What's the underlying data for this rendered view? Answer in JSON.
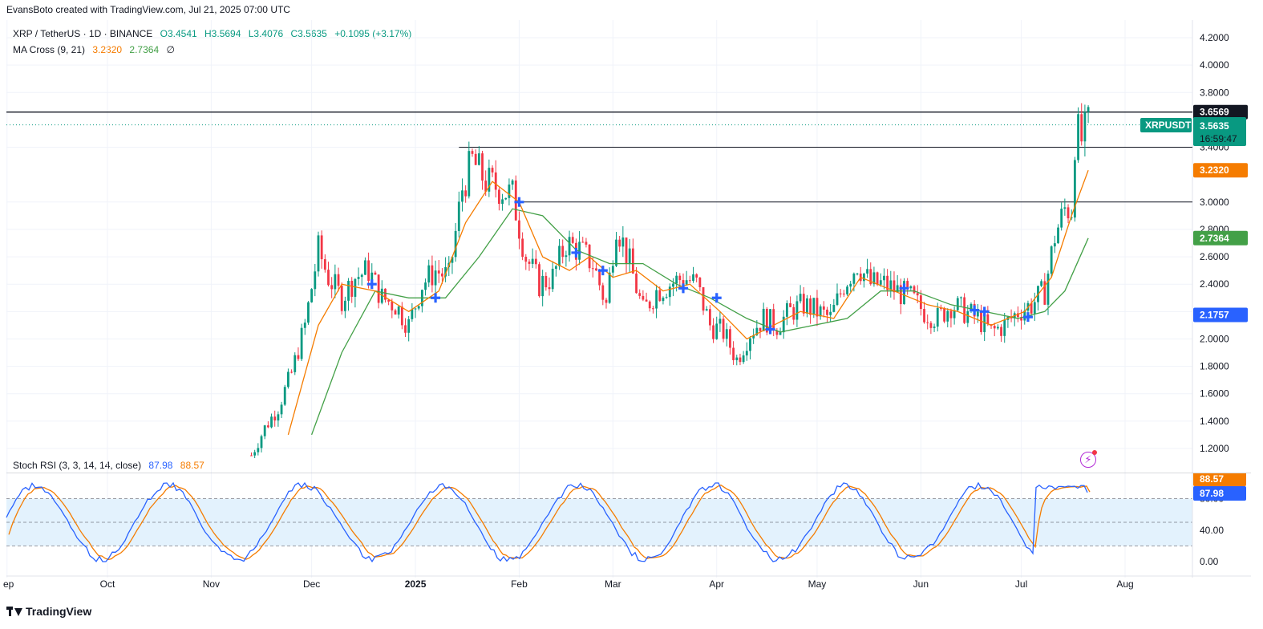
{
  "header": {
    "author_line": "EvansBoto created with TradingView.com, Jul 21, 2025 07:00 UTC"
  },
  "legend": {
    "symbol": "XRP / TetherUS · 1D · BINANCE",
    "open": "O3.4541",
    "high": "H3.5694",
    "low": "L3.4076",
    "close": "C3.5635",
    "change": "+0.1095 (+3.17%)",
    "ma_label": "MA Cross (9, 21)",
    "ma_fast": "3.2320",
    "ma_slow": "2.7364",
    "ma_suffix": "∅",
    "rsi_label": "Stoch RSI (3, 3, 14, 14, close)",
    "rsi_k": "87.98",
    "rsi_d": "88.57"
  },
  "price_tags": {
    "resistance": "3.6569",
    "symbol_tag": "XRPUSDT",
    "last_price": "3.5635",
    "countdown": "16:59:47",
    "ma_fast": "3.2320",
    "ma_slow": "2.7364",
    "low_tag": "2.1757",
    "rsi_d": "88.57",
    "rsi_k": "87.98"
  },
  "footer": {
    "brand": "TradingView"
  },
  "colors": {
    "up": "#089981",
    "down": "#f23645",
    "ma_fast": "#f57c00",
    "ma_slow": "#43a047",
    "rsi_k": "#2962ff",
    "rsi_d": "#f57c00",
    "rsi_band": "#e3f2fd"
  },
  "chart_data": {
    "type": "candlestick",
    "price_axis": {
      "min": 1.1,
      "max": 4.25,
      "ticks": [
        "1.2000",
        "1.4000",
        "1.6000",
        "1.8000",
        "2.0000",
        "2.2000",
        "2.4000",
        "2.6000",
        "2.8000",
        "3.0000",
        "3.4000",
        "3.8000",
        "4.0000",
        "4.2000"
      ]
    },
    "time_axis": {
      "labels": [
        "ep",
        "Oct",
        "Nov",
        "Dec",
        "2025",
        "Feb",
        "Mar",
        "Apr",
        "May",
        "Jun",
        "Jul",
        "Aug"
      ]
    },
    "horizontal_lines": [
      3.6569,
      3.4,
      3.0
    ],
    "weekly_closes": [
      {
        "d": "2024-11-13",
        "c": 1.15
      },
      {
        "d": "2024-11-17",
        "c": 1.35
      },
      {
        "d": "2024-11-21",
        "c": 1.5
      },
      {
        "d": "2024-11-25",
        "c": 1.75
      },
      {
        "d": "2024-11-29",
        "c": 2.1
      },
      {
        "d": "2024-12-03",
        "c": 2.65
      },
      {
        "d": "2024-12-06",
        "c": 2.45
      },
      {
        "d": "2024-12-10",
        "c": 2.3
      },
      {
        "d": "2024-12-14",
        "c": 2.45
      },
      {
        "d": "2024-12-18",
        "c": 2.5
      },
      {
        "d": "2024-12-22",
        "c": 2.3
      },
      {
        "d": "2024-12-26",
        "c": 2.25
      },
      {
        "d": "2024-12-30",
        "c": 2.1
      },
      {
        "d": "2025-01-03",
        "c": 2.4
      },
      {
        "d": "2025-01-07",
        "c": 2.5
      },
      {
        "d": "2025-01-11",
        "c": 2.45
      },
      {
        "d": "2025-01-15",
        "c": 3.1
      },
      {
        "d": "2025-01-18",
        "c": 3.3
      },
      {
        "d": "2025-01-22",
        "c": 3.15
      },
      {
        "d": "2025-01-26",
        "c": 3.1
      },
      {
        "d": "2025-01-30",
        "c": 3.05
      },
      {
        "d": "2025-02-03",
        "c": 2.6
      },
      {
        "d": "2025-02-07",
        "c": 2.4
      },
      {
        "d": "2025-02-11",
        "c": 2.45
      },
      {
        "d": "2025-02-15",
        "c": 2.7
      },
      {
        "d": "2025-02-19",
        "c": 2.65
      },
      {
        "d": "2025-02-23",
        "c": 2.55
      },
      {
        "d": "2025-02-27",
        "c": 2.25
      },
      {
        "d": "2025-03-02",
        "c": 2.85
      },
      {
        "d": "2025-03-06",
        "c": 2.55
      },
      {
        "d": "2025-03-10",
        "c": 2.2
      },
      {
        "d": "2025-03-14",
        "c": 2.35
      },
      {
        "d": "2025-03-18",
        "c": 2.4
      },
      {
        "d": "2025-03-22",
        "c": 2.45
      },
      {
        "d": "2025-03-26",
        "c": 2.4
      },
      {
        "d": "2025-03-30",
        "c": 2.1
      },
      {
        "d": "2025-04-03",
        "c": 2.05
      },
      {
        "d": "2025-04-07",
        "c": 1.85
      },
      {
        "d": "2025-04-11",
        "c": 2.05
      },
      {
        "d": "2025-04-15",
        "c": 2.15
      },
      {
        "d": "2025-04-19",
        "c": 2.1
      },
      {
        "d": "2025-04-23",
        "c": 2.2
      },
      {
        "d": "2025-04-27",
        "c": 2.25
      },
      {
        "d": "2025-05-01",
        "c": 2.2
      },
      {
        "d": "2025-05-05",
        "c": 2.15
      },
      {
        "d": "2025-05-09",
        "c": 2.4
      },
      {
        "d": "2025-05-13",
        "c": 2.55
      },
      {
        "d": "2025-05-17",
        "c": 2.4
      },
      {
        "d": "2025-05-21",
        "c": 2.4
      },
      {
        "d": "2025-05-25",
        "c": 2.35
      },
      {
        "d": "2025-05-29",
        "c": 2.3
      },
      {
        "d": "2025-06-02",
        "c": 2.2
      },
      {
        "d": "2025-06-06",
        "c": 2.15
      },
      {
        "d": "2025-06-10",
        "c": 2.25
      },
      {
        "d": "2025-06-14",
        "c": 2.2
      },
      {
        "d": "2025-06-18",
        "c": 2.15
      },
      {
        "d": "2025-06-22",
        "c": 2.05
      },
      {
        "d": "2025-06-26",
        "c": 2.1
      },
      {
        "d": "2025-06-30",
        "c": 2.2
      },
      {
        "d": "2025-07-04",
        "c": 2.25
      },
      {
        "d": "2025-07-08",
        "c": 2.35
      },
      {
        "d": "2025-07-11",
        "c": 2.75
      },
      {
        "d": "2025-07-14",
        "c": 2.95
      },
      {
        "d": "2025-07-16",
        "c": 2.95
      },
      {
        "d": "2025-07-17",
        "c": 3.45
      },
      {
        "d": "2025-07-18",
        "c": 3.5
      },
      {
        "d": "2025-07-19",
        "c": 3.45
      },
      {
        "d": "2025-07-21",
        "c": 3.5635
      }
    ],
    "ma_fast": [
      {
        "d": "2024-11-24",
        "v": 1.3
      },
      {
        "d": "2024-12-03",
        "v": 2.1
      },
      {
        "d": "2024-12-10",
        "v": 2.4
      },
      {
        "d": "2024-12-20",
        "v": 2.35
      },
      {
        "d": "2024-12-30",
        "v": 2.2
      },
      {
        "d": "2025-01-08",
        "v": 2.35
      },
      {
        "d": "2025-01-16",
        "v": 2.85
      },
      {
        "d": "2025-01-24",
        "v": 3.15
      },
      {
        "d": "2025-02-01",
        "v": 3.0
      },
      {
        "d": "2025-02-08",
        "v": 2.6
      },
      {
        "d": "2025-02-16",
        "v": 2.5
      },
      {
        "d": "2025-02-22",
        "v": 2.6
      },
      {
        "d": "2025-03-01",
        "v": 2.45
      },
      {
        "d": "2025-03-08",
        "v": 2.5
      },
      {
        "d": "2025-03-16",
        "v": 2.35
      },
      {
        "d": "2025-03-24",
        "v": 2.4
      },
      {
        "d": "2025-04-02",
        "v": 2.2
      },
      {
        "d": "2025-04-10",
        "v": 2.0
      },
      {
        "d": "2025-04-18",
        "v": 2.1
      },
      {
        "d": "2025-04-26",
        "v": 2.2
      },
      {
        "d": "2025-05-06",
        "v": 2.15
      },
      {
        "d": "2025-05-14",
        "v": 2.45
      },
      {
        "d": "2025-05-24",
        "v": 2.35
      },
      {
        "d": "2025-06-03",
        "v": 2.25
      },
      {
        "d": "2025-06-12",
        "v": 2.2
      },
      {
        "d": "2025-06-22",
        "v": 2.1
      },
      {
        "d": "2025-07-02",
        "v": 2.2
      },
      {
        "d": "2025-07-10",
        "v": 2.45
      },
      {
        "d": "2025-07-16",
        "v": 2.9
      },
      {
        "d": "2025-07-21",
        "v": 3.232
      }
    ],
    "ma_slow": [
      {
        "d": "2024-12-01",
        "v": 1.3
      },
      {
        "d": "2024-12-10",
        "v": 1.9
      },
      {
        "d": "2024-12-20",
        "v": 2.35
      },
      {
        "d": "2024-12-30",
        "v": 2.3
      },
      {
        "d": "2025-01-10",
        "v": 2.3
      },
      {
        "d": "2025-01-20",
        "v": 2.6
      },
      {
        "d": "2025-01-30",
        "v": 2.95
      },
      {
        "d": "2025-02-08",
        "v": 2.9
      },
      {
        "d": "2025-02-18",
        "v": 2.65
      },
      {
        "d": "2025-02-28",
        "v": 2.55
      },
      {
        "d": "2025-03-10",
        "v": 2.55
      },
      {
        "d": "2025-03-20",
        "v": 2.4
      },
      {
        "d": "2025-03-30",
        "v": 2.3
      },
      {
        "d": "2025-04-10",
        "v": 2.15
      },
      {
        "d": "2025-04-20",
        "v": 2.05
      },
      {
        "d": "2025-04-30",
        "v": 2.1
      },
      {
        "d": "2025-05-10",
        "v": 2.15
      },
      {
        "d": "2025-05-20",
        "v": 2.35
      },
      {
        "d": "2025-05-30",
        "v": 2.35
      },
      {
        "d": "2025-06-10",
        "v": 2.25
      },
      {
        "d": "2025-06-20",
        "v": 2.2
      },
      {
        "d": "2025-06-30",
        "v": 2.15
      },
      {
        "d": "2025-07-08",
        "v": 2.2
      },
      {
        "d": "2025-07-14",
        "v": 2.35
      },
      {
        "d": "2025-07-21",
        "v": 2.7364
      }
    ],
    "ma_cross_markers": [
      {
        "d": "2024-12-19",
        "v": 2.4
      },
      {
        "d": "2025-01-07",
        "v": 2.3
      },
      {
        "d": "2025-02-01",
        "v": 3.0
      },
      {
        "d": "2025-02-18",
        "v": 2.63
      },
      {
        "d": "2025-02-26",
        "v": 2.5
      },
      {
        "d": "2025-03-22",
        "v": 2.37
      },
      {
        "d": "2025-04-01",
        "v": 2.3
      },
      {
        "d": "2025-04-17",
        "v": 2.07
      },
      {
        "d": "2025-05-27",
        "v": 2.37
      },
      {
        "d": "2025-06-17",
        "v": 2.21
      },
      {
        "d": "2025-06-20",
        "v": 2.2
      },
      {
        "d": "2025-07-03",
        "v": 2.16
      }
    ],
    "stoch_rsi": {
      "range": [
        0,
        100
      ],
      "ticks": [
        "0.00",
        "40.00",
        "80.00"
      ],
      "band": [
        20,
        80
      ],
      "k_last": 87.98,
      "d_last": 88.57
    }
  }
}
